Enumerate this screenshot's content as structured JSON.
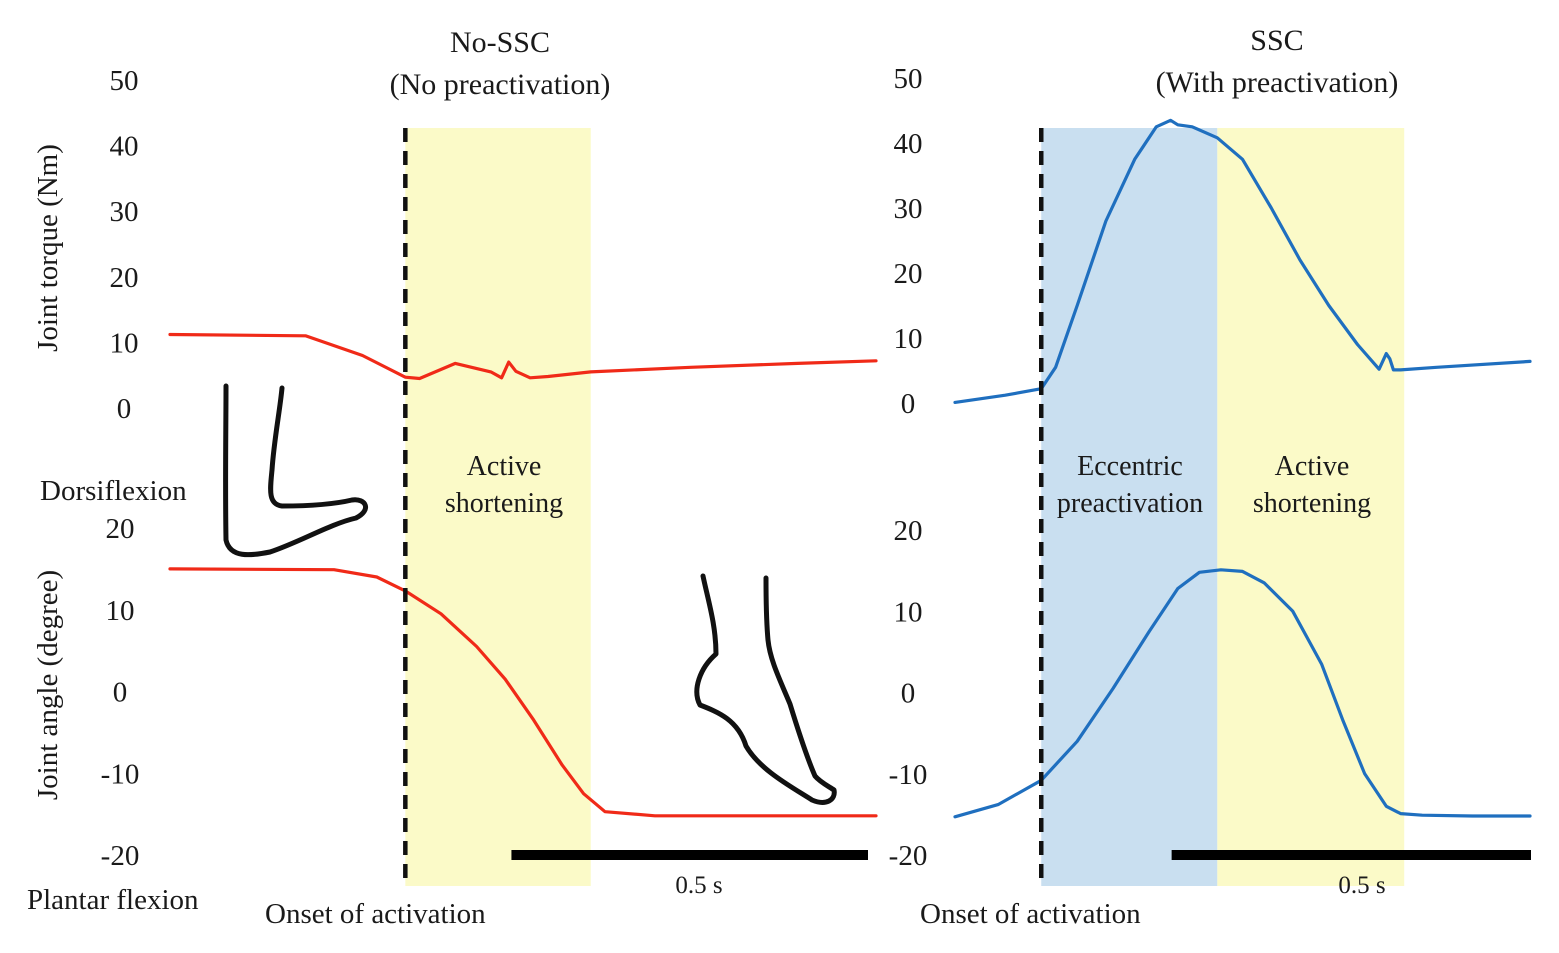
{
  "colors": {
    "no_ssc": "#f02a18",
    "ssc": "#1f6fbf",
    "eccentric_bg": "#c9dff0",
    "shortening_bg": "#fbfac8",
    "onset_line": "#111111",
    "scale_bar": "#000000",
    "foot": "#111111"
  },
  "labels": {
    "title_no_ssc": "No-SSC",
    "subtitle_no_ssc": "(No preactivation)",
    "title_ssc": "SSC",
    "subtitle_ssc": "(With preactivation)",
    "torque_axis": "Joint torque (Nm)",
    "angle_axis": "Joint angle (degree)",
    "dorsiflexion": "Dorsiflexion",
    "plantar_flexion": "Plantar flexion",
    "onset_left": "Onset of activation",
    "onset_right": "Onset of activation",
    "active_1": "Active",
    "shortening_1": "shortening",
    "eccentric": "Eccentric",
    "preactivation": "preactivation",
    "active_2": "Active",
    "shortening_2": "shortening",
    "scale_left": "0.5 s",
    "scale_right": "0.5 s"
  },
  "chart_data": [
    {
      "type": "line",
      "panel": "No-SSC torque",
      "title": "No-SSC",
      "subtitle": "(No preactivation)",
      "ylabel": "Joint torque (Nm)",
      "ylim": [
        0,
        50
      ],
      "yticks": [
        50,
        40,
        30,
        20,
        10,
        0
      ],
      "xlabel": "Onset of activation",
      "xlim": [
        -0.33,
        0.66
      ],
      "onset_time": 0,
      "phases": [
        {
          "name": "Active shortening",
          "start": 0,
          "end": 0.26
        }
      ],
      "series": [
        {
          "name": "No-SSC joint torque",
          "x": [
            -0.33,
            -0.14,
            -0.06,
            0.0,
            0.02,
            0.07,
            0.12,
            0.135,
            0.145,
            0.155,
            0.175,
            0.2,
            0.26,
            0.4,
            0.55,
            0.66
          ],
          "values": [
            11.2,
            11.0,
            8.0,
            4.7,
            4.5,
            6.8,
            5.5,
            4.6,
            7.0,
            5.6,
            4.6,
            4.8,
            5.5,
            6.2,
            6.8,
            7.2
          ]
        }
      ]
    },
    {
      "type": "line",
      "panel": "No-SSC angle",
      "ylabel": "Joint angle (degree)",
      "ylim": [
        -20,
        20
      ],
      "yticks": [
        20,
        10,
        0,
        -10,
        -20
      ],
      "xlim": [
        -0.33,
        0.66
      ],
      "onset_time": 0,
      "phases": [
        {
          "name": "Active shortening",
          "start": 0,
          "end": 0.26
        }
      ],
      "series": [
        {
          "name": "No-SSC joint angle",
          "x": [
            -0.33,
            -0.1,
            -0.04,
            0.0,
            0.05,
            0.1,
            0.14,
            0.18,
            0.22,
            0.25,
            0.28,
            0.35,
            0.5,
            0.66
          ],
          "values": [
            15,
            14.9,
            14,
            12.3,
            9.5,
            5.5,
            1.5,
            -3.5,
            -9,
            -12.5,
            -14.7,
            -15.2,
            -15.2,
            -15.2
          ]
        }
      ]
    },
    {
      "type": "line",
      "panel": "SSC torque",
      "title": "SSC",
      "subtitle": "(With preactivation)",
      "ylim": [
        0,
        50
      ],
      "yticks": [
        50,
        40,
        30,
        20,
        10,
        0
      ],
      "xlabel": "Onset of activation",
      "xlim": [
        -0.12,
        0.68
      ],
      "onset_time": 0,
      "phases": [
        {
          "name": "Eccentric preactivation",
          "start": 0,
          "end": 0.245
        },
        {
          "name": "Active shortening",
          "start": 0.245,
          "end": 0.505
        }
      ],
      "series": [
        {
          "name": "SSC joint torque",
          "x": [
            -0.12,
            -0.05,
            0.0,
            0.02,
            0.05,
            0.09,
            0.13,
            0.16,
            0.18,
            0.19,
            0.21,
            0.245,
            0.28,
            0.32,
            0.36,
            0.4,
            0.44,
            0.47,
            0.48,
            0.485,
            0.49,
            0.5,
            0.55,
            0.68
          ],
          "values": [
            0.1,
            1.2,
            2.2,
            5.5,
            15,
            28,
            37.5,
            42.5,
            43.5,
            42.8,
            42.5,
            40.8,
            37.5,
            30,
            22,
            15,
            9,
            5.2,
            7.6,
            6.8,
            5.1,
            5.1,
            5.5,
            6.4
          ]
        }
      ]
    },
    {
      "type": "line",
      "panel": "SSC angle",
      "ylim": [
        -20,
        20
      ],
      "yticks": [
        20,
        10,
        0,
        -10,
        -20
      ],
      "xlim": [
        -0.12,
        0.68
      ],
      "onset_time": 0,
      "phases": [
        {
          "name": "Eccentric preactivation",
          "start": 0,
          "end": 0.245
        },
        {
          "name": "Active shortening",
          "start": 0.245,
          "end": 0.505
        }
      ],
      "series": [
        {
          "name": "SSC joint angle",
          "x": [
            -0.12,
            -0.06,
            0.0,
            0.05,
            0.1,
            0.15,
            0.19,
            0.22,
            0.25,
            0.28,
            0.31,
            0.35,
            0.39,
            0.42,
            0.45,
            0.48,
            0.5,
            0.53,
            0.6,
            0.68
          ],
          "values": [
            -15.3,
            -13.8,
            -10.8,
            -6,
            0.5,
            7.5,
            12.8,
            14.8,
            15.1,
            14.9,
            13.5,
            10,
            3.5,
            -3.5,
            -10,
            -14,
            -14.9,
            -15.1,
            -15.2,
            -15.2
          ]
        }
      ]
    }
  ],
  "scale_bars": [
    {
      "label": "0.5 s",
      "duration": 0.5,
      "panel": "No-SSC"
    },
    {
      "label": "0.5 s",
      "duration": 0.5,
      "panel": "SSC"
    }
  ]
}
